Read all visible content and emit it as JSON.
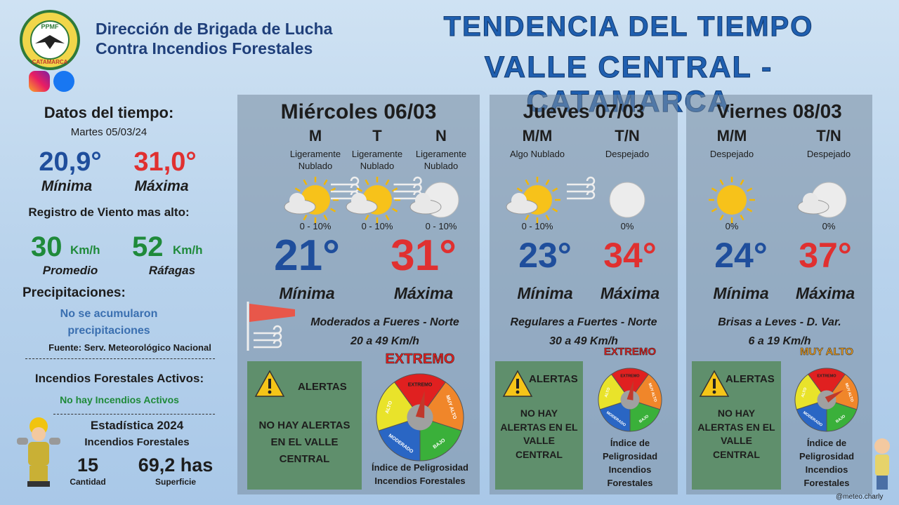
{
  "header": {
    "logo_top": "PPMF",
    "logo_bottom": "CATAMARCA",
    "org_line1": "Dirección de Brigada de Lucha",
    "org_line2": "Contra Incendios Forestales",
    "title_line1": "TENDENCIA DEL TIEMPO",
    "title_line2": "VALLE CENTRAL - CATAMARCA"
  },
  "sidebar": {
    "heading": "Datos del tiempo:",
    "date": "Martes 05/03/24",
    "min_value": "20,9°",
    "min_label": "Mínima",
    "max_value": "31,0°",
    "max_label": "Máxima",
    "wind_heading": "Registro de Viento mas alto:",
    "wind_avg": "30",
    "wind_gust": "52",
    "wind_unit": "Km/h",
    "wind_avg_label": "Promedio",
    "wind_gust_label": "Ráfagas",
    "precip_heading": "Precipitaciones:",
    "precip_text": "No se acumularon precipitaciones",
    "source": "Fuente: Serv. Meteorológico Nacional",
    "fires_heading": "Incendios Forestales Activos:",
    "fires_text": "No hay Incendios Activos",
    "stats_title": "Estadística 2024",
    "stats_subtitle": "Incendios Forestales",
    "stats_count": "15",
    "stats_count_label": "Cantidad",
    "stats_area": "69,2 has",
    "stats_area_label": "Superficie"
  },
  "gauge_labels": [
    "EXTREMO",
    "MUY ALTO",
    "BAJO",
    "MODERADO",
    "ALTO"
  ],
  "days": [
    {
      "name": "Miércoles 06/03",
      "periods": [
        {
          "label": "M",
          "sky": "Ligeramente Nublado",
          "precip": "0 - 10%"
        },
        {
          "label": "T",
          "sky": "Ligeramente Nublado",
          "precip": "0 - 10%"
        },
        {
          "label": "N",
          "sky": "Ligeramente Nublado",
          "precip": "0 - 10%"
        }
      ],
      "min": "21°",
      "max": "31°",
      "min_label": "Mínima",
      "max_label": "Máxima",
      "wind": "Moderados a Fueres - Norte",
      "wind_speed": "20 a 49 Km/h",
      "alerts_title": "ALERTAS",
      "alerts_text": "NO HAY ALERTAS EN EL VALLE CENTRAL",
      "danger": "EXTREMO",
      "danger_caption": "Índice de Peligrosidad Incendios Forestales"
    },
    {
      "name": "Jueves 07/03",
      "periods": [
        {
          "label": "M/M",
          "sky": "Algo Nublado",
          "precip": "0 - 10%"
        },
        {
          "label": "T/N",
          "sky": "Despejado",
          "precip": "0%"
        }
      ],
      "min": "23°",
      "max": "34°",
      "min_label": "Mínima",
      "max_label": "Máxima",
      "wind": "Regulares a Fuertes - Norte",
      "wind_speed": "30 a 49 Km/h",
      "alerts_title": "ALERTAS",
      "alerts_text": "NO HAY ALERTAS EN EL VALLE CENTRAL",
      "danger": "EXTREMO",
      "danger_caption": "Índice de Peligrosidad Incendios Forestales"
    },
    {
      "name": "Viernes 08/03",
      "periods": [
        {
          "label": "M/M",
          "sky": "Despejado",
          "precip": "0%"
        },
        {
          "label": "T/N",
          "sky": "Despejado",
          "precip": "0%"
        }
      ],
      "min": "24°",
      "max": "37°",
      "min_label": "Mínima",
      "max_label": "Máxima",
      "wind": "Brisas a Leves  - D. Var.",
      "wind_speed": "6 a 19 Km/h",
      "alerts_title": "ALERTAS",
      "alerts_text": "NO HAY ALERTAS EN EL VALLE CENTRAL",
      "danger": "MUY ALTO",
      "danger_caption": "Índice de Peligrosidad Incendios Forestales"
    }
  ],
  "footer": {
    "handle": "@meteo.charly"
  }
}
